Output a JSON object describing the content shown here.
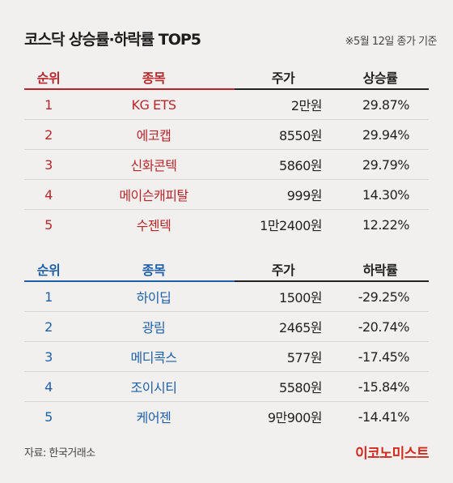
{
  "title": "코스닥 상승률·하락률 TOP5",
  "note": "※5월 12일 종가 기준",
  "gainers": {
    "headers": {
      "rank": "순위",
      "name": "종목",
      "price": "주가",
      "rate": "상승률"
    },
    "rows": [
      {
        "rank": "1",
        "name": "KG ETS",
        "price": "2만원",
        "rate": "29.87%"
      },
      {
        "rank": "2",
        "name": "에코캡",
        "price": "8550원",
        "rate": "29.94%"
      },
      {
        "rank": "3",
        "name": "신화콘텍",
        "price": "5860원",
        "rate": "29.79%"
      },
      {
        "rank": "4",
        "name": "메이슨캐피탈",
        "price": "999원",
        "rate": "14.30%"
      },
      {
        "rank": "5",
        "name": "수젠텍",
        "price": "1만2400원",
        "rate": "12.22%"
      }
    ]
  },
  "losers": {
    "headers": {
      "rank": "순위",
      "name": "종목",
      "price": "주가",
      "rate": "하락률"
    },
    "rows": [
      {
        "rank": "1",
        "name": "하이딥",
        "price": "1500원",
        "rate": "-29.25%"
      },
      {
        "rank": "2",
        "name": "광림",
        "price": "2465원",
        "rate": "-20.74%"
      },
      {
        "rank": "3",
        "name": "메디콕스",
        "price": "577원",
        "rate": "-17.45%"
      },
      {
        "rank": "4",
        "name": "조이시티",
        "price": "5580원",
        "rate": "-15.84%"
      },
      {
        "rank": "5",
        "name": "케어젠",
        "price": "9만900원",
        "rate": "-14.41%"
      }
    ]
  },
  "source": "자료: 한국거래소",
  "logo": "이코노미스트",
  "colors": {
    "gain": "#b8262c",
    "loss": "#1f5fa8",
    "logo": "#d32a1e",
    "background": "#f1f0ee"
  }
}
